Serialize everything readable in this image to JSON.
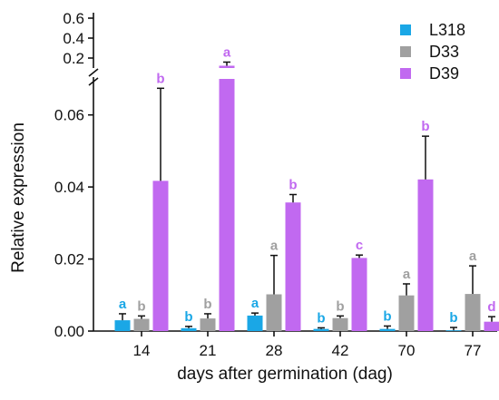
{
  "chart_data": {
    "type": "bar",
    "xlabel": "days after germination (dag)",
    "ylabel": "Relative expression",
    "categories": [
      "14",
      "21",
      "28",
      "42",
      "70",
      "77"
    ],
    "axis_break": true,
    "y_lower": {
      "range": [
        0,
        0.07
      ],
      "ticks": [
        "0.00",
        "0.02",
        "0.04",
        "0.06"
      ]
    },
    "y_upper": {
      "ticks": [
        "0.2",
        "0.4",
        "0.6"
      ]
    },
    "legend_position": "top-right",
    "series": [
      {
        "name": "L318",
        "color": "#1aa7e6",
        "values": [
          0.003,
          0.0008,
          0.0043,
          0.0006,
          0.0006,
          0.0002
        ],
        "errors": [
          0.0018,
          0.0005,
          0.0007,
          0.0003,
          0.0008,
          0.0008
        ],
        "letters": [
          "a",
          "b",
          "a",
          "b",
          "b",
          "b"
        ]
      },
      {
        "name": "D33",
        "color": "#a0a0a0",
        "values": [
          0.0034,
          0.0035,
          0.0102,
          0.0036,
          0.0099,
          0.0103
        ],
        "errors": [
          0.0008,
          0.0013,
          0.0108,
          0.0006,
          0.0032,
          0.0078
        ],
        "letters": [
          "b",
          "b",
          "a",
          "b",
          "a",
          "a"
        ]
      },
      {
        "name": "D39",
        "color": "#c169f0",
        "values": [
          0.0417,
          0.1,
          0.0357,
          0.0203,
          0.0421,
          0.0026
        ],
        "errors": [
          0.0257,
          0.03,
          0.0022,
          0.0008,
          0.012,
          0.0014
        ],
        "letters": [
          "b",
          "a",
          "b",
          "c",
          "b",
          "d"
        ]
      }
    ]
  }
}
